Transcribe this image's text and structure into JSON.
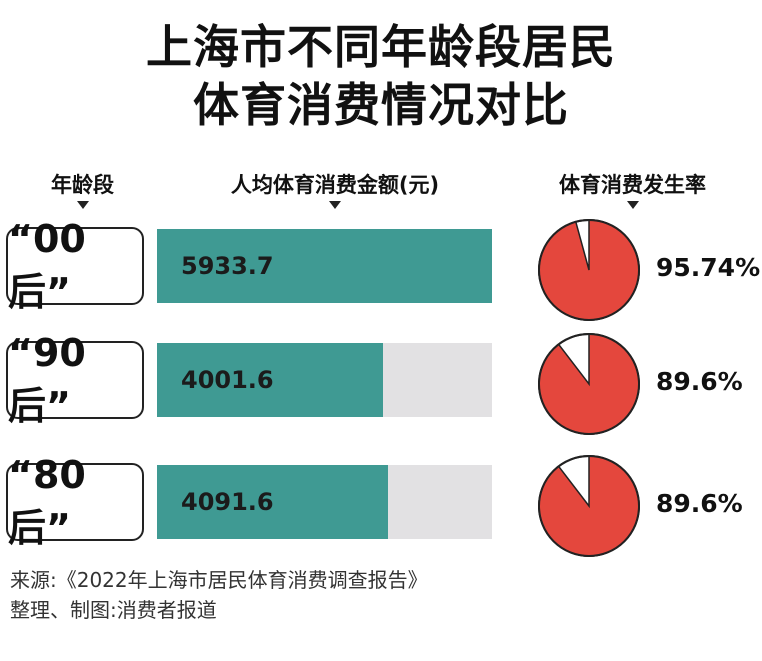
{
  "title_line1": "上海市不同年龄段居民",
  "title_line2": "体育消费情况对比",
  "headers": {
    "age": "年龄段",
    "spending": "人均体育消费金额(元)",
    "rate": "体育消费发生率"
  },
  "colors": {
    "bar": "#3f9a93",
    "track": "#e2e1e3",
    "pie": "#e4473d"
  },
  "chart_data": {
    "type": "bar",
    "categories": [
      "“00后”",
      "“90后”",
      "“80后”"
    ],
    "spending_values": [
      5933.7,
      4001.6,
      4091.6
    ],
    "spending_labels": [
      "5933.7",
      "4001.6",
      "4091.6"
    ],
    "rate_values": [
      95.74,
      89.6,
      89.6
    ],
    "rate_labels": [
      "95.74%",
      "89.6%",
      "89.6%"
    ],
    "bar_max": 5933.7,
    "secondary_type": "pie"
  },
  "source_line1": "来源:《2022年上海市居民体育消费调查报告》",
  "source_line2": "整理、制图:消费者报道"
}
